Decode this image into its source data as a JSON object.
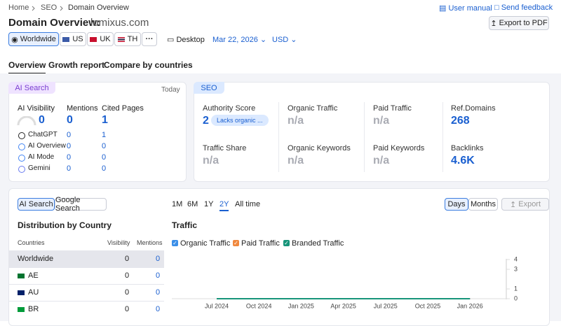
{
  "breadcrumb": [
    "Home",
    "SEO",
    "Domain Overview"
  ],
  "header": {
    "title": "Domain Overview:",
    "domain": "lumixus.com",
    "links": [
      "User manual",
      "Send feedback"
    ],
    "export_button": "Export to PDF"
  },
  "filters": {
    "databases": [
      "Worldwide",
      "US",
      "UK",
      "TH"
    ],
    "device": "Desktop",
    "date": "Mar 22, 2026",
    "currency": "USD"
  },
  "tabs": [
    "Overview",
    "Growth report",
    "Compare by countries"
  ],
  "ai_search": {
    "label": "AI Search",
    "date": "Today",
    "columns": [
      "AI Visibility",
      "Mentions",
      "Cited Pages"
    ],
    "totals": [
      0,
      0,
      1
    ],
    "rows": [
      {
        "name": "ChatGPT",
        "mentions": 0,
        "cited": 1
      },
      {
        "name": "AI Overview",
        "mentions": 0,
        "cited": 0
      },
      {
        "name": "AI Mode",
        "mentions": 0,
        "cited": 0
      },
      {
        "name": "Gemini",
        "mentions": 0,
        "cited": 0
      }
    ]
  },
  "seo": {
    "label": "SEO",
    "metrics": [
      {
        "name": "Authority Score",
        "value": "2",
        "badge": "Lacks organic ..."
      },
      {
        "name": "Organic Traffic",
        "value": "n/a"
      },
      {
        "name": "Paid Traffic",
        "value": "n/a"
      },
      {
        "name": "Ref.Domains",
        "value": "268"
      },
      {
        "name": "Traffic Share",
        "value": "n/a"
      },
      {
        "name": "Organic Keywords",
        "value": "n/a"
      },
      {
        "name": "Paid Keywords",
        "value": "n/a"
      },
      {
        "name": "Backlinks",
        "value": "4.6K"
      }
    ]
  },
  "controls": {
    "source": [
      "AI Search",
      "Google Search"
    ],
    "periods": [
      "1M",
      "6M",
      "1Y",
      "2Y",
      "All time"
    ],
    "granularity": [
      "Days",
      "Months"
    ],
    "export": "Export"
  },
  "distribution": {
    "title": "Distribution by Country",
    "columns": [
      "Countries",
      "Visibility",
      "Mentions"
    ],
    "rows": [
      {
        "country": "Worldwide",
        "visibility": 0,
        "mentions": 0
      },
      {
        "country": "AE",
        "visibility": 0,
        "mentions": 0
      },
      {
        "country": "AU",
        "visibility": 0,
        "mentions": 0
      },
      {
        "country": "BR",
        "visibility": 0,
        "mentions": 0
      }
    ]
  },
  "chart_data": {
    "type": "line",
    "title": "Traffic",
    "categories": [
      "Jul 2024",
      "Oct 2024",
      "Jan 2025",
      "Apr 2025",
      "Jul 2025",
      "Oct 2025",
      "Jan 2026"
    ],
    "series": [
      {
        "name": "Organic Traffic",
        "color": "#3b8fe8",
        "values": [
          0,
          0,
          0,
          0,
          0,
          0,
          0
        ]
      },
      {
        "name": "Paid Traffic",
        "color": "#f0883e",
        "values": [
          0,
          0,
          0,
          0,
          0,
          0,
          0
        ]
      },
      {
        "name": "Branded Traffic",
        "color": "#17957a",
        "values": [
          0,
          0,
          0,
          0,
          0,
          0,
          0
        ]
      }
    ],
    "ylim": [
      0,
      4
    ],
    "yticks": [
      0,
      1,
      3,
      4
    ]
  }
}
